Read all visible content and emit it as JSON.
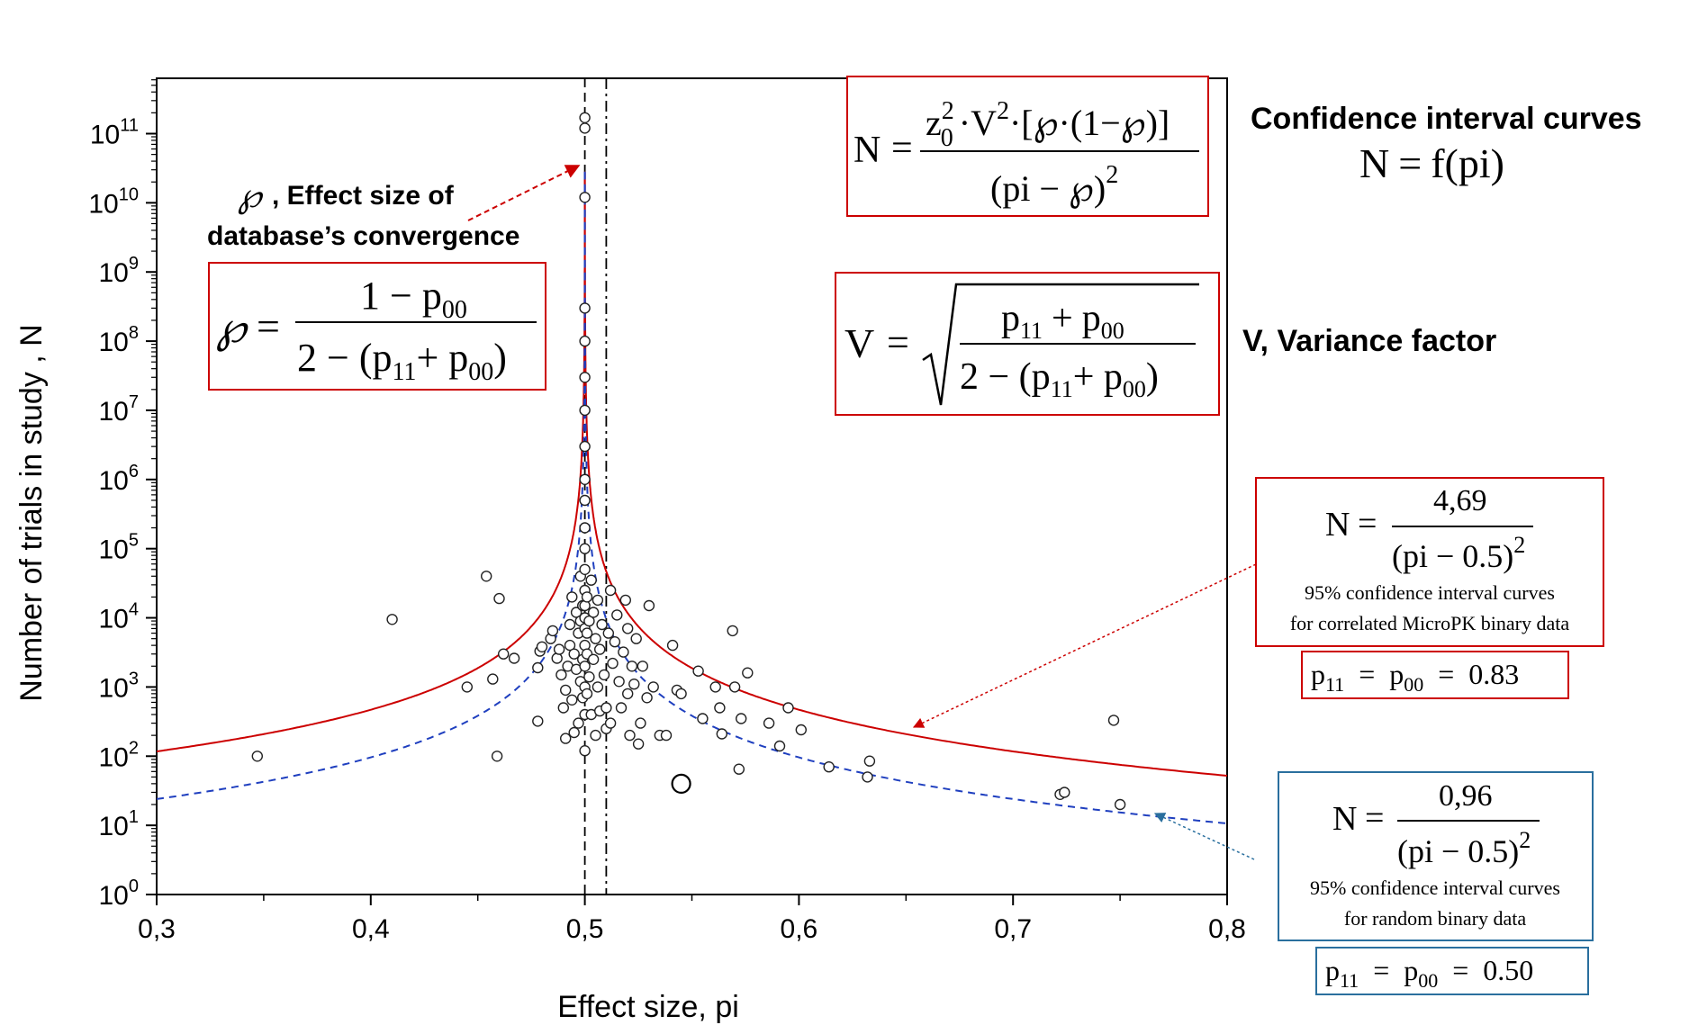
{
  "chart_data": {
    "type": "scatter",
    "title": "",
    "xlabel": "Effect size, pi",
    "ylabel": "Number of trials in study , N",
    "xlim": [
      0.3,
      0.8
    ],
    "ylim_log10": [
      0,
      11.8
    ],
    "y_scale": "log",
    "grid": false,
    "x_ticks": [
      "0,3",
      "0,4",
      "0,5",
      "0,6",
      "0,7",
      "0,8"
    ],
    "x_tick_values": [
      0.3,
      0.4,
      0.5,
      0.6,
      0.7,
      0.8
    ],
    "y_tick_exponents": [
      0,
      1,
      2,
      3,
      4,
      5,
      6,
      7,
      8,
      9,
      10,
      11
    ],
    "y_tick_base": "10",
    "reference_lines": [
      {
        "x": 0.5,
        "style": "dashed",
        "color": "#000000"
      },
      {
        "x": 0.51,
        "style": "dash-dot",
        "color": "#000000"
      }
    ],
    "curves": [
      {
        "constant": 4.69,
        "center": 0.5,
        "color": "#cc0000",
        "style": "solid"
      },
      {
        "constant": 0.96,
        "center": 0.5,
        "color": "#1f3fbf",
        "style": "dashed"
      }
    ],
    "points": [
      [
        0.347,
        100
      ],
      [
        0.41,
        9500
      ],
      [
        0.445,
        1000
      ],
      [
        0.454,
        40000
      ],
      [
        0.457,
        1300
      ],
      [
        0.459,
        100
      ],
      [
        0.46,
        19000
      ],
      [
        0.462,
        3000
      ],
      [
        0.467,
        2600
      ],
      [
        0.478,
        320
      ],
      [
        0.478,
        1900
      ],
      [
        0.479,
        3300
      ],
      [
        0.48,
        3800
      ],
      [
        0.484,
        5000
      ],
      [
        0.485,
        6500
      ],
      [
        0.487,
        2600
      ],
      [
        0.488,
        3500
      ],
      [
        0.489,
        1500
      ],
      [
        0.49,
        500
      ],
      [
        0.491,
        180
      ],
      [
        0.491,
        900
      ],
      [
        0.492,
        2000
      ],
      [
        0.493,
        4000
      ],
      [
        0.493,
        8000
      ],
      [
        0.494,
        20000
      ],
      [
        0.494,
        650
      ],
      [
        0.495,
        220
      ],
      [
        0.495,
        3000
      ],
      [
        0.496,
        12000
      ],
      [
        0.496,
        1800
      ],
      [
        0.497,
        300
      ],
      [
        0.497,
        6000
      ],
      [
        0.498,
        1200
      ],
      [
        0.498,
        40000
      ],
      [
        0.498,
        9000
      ],
      [
        0.499,
        2500
      ],
      [
        0.499,
        15000
      ],
      [
        0.499,
        700
      ],
      [
        0.5,
        120
      ],
      [
        0.5,
        400
      ],
      [
        0.5,
        1000
      ],
      [
        0.5,
        2000
      ],
      [
        0.5,
        4000
      ],
      [
        0.5,
        7000
      ],
      [
        0.5,
        10000
      ],
      [
        0.5,
        15000
      ],
      [
        0.5,
        25000
      ],
      [
        0.5,
        50000
      ],
      [
        0.5,
        100000
      ],
      [
        0.5,
        200000
      ],
      [
        0.5,
        500000
      ],
      [
        0.5,
        1000000
      ],
      [
        0.5,
        3000000
      ],
      [
        0.5,
        10000000
      ],
      [
        0.5,
        30000000
      ],
      [
        0.5,
        100000000
      ],
      [
        0.5,
        300000000
      ],
      [
        0.5,
        12000000000
      ],
      [
        0.5,
        120000000000
      ],
      [
        0.5,
        170000000000
      ],
      [
        0.501,
        800
      ],
      [
        0.501,
        3000
      ],
      [
        0.501,
        20000
      ],
      [
        0.501,
        6000
      ],
      [
        0.502,
        1400
      ],
      [
        0.502,
        9000
      ],
      [
        0.503,
        35000
      ],
      [
        0.503,
        400
      ],
      [
        0.504,
        2500
      ],
      [
        0.504,
        12000
      ],
      [
        0.505,
        200
      ],
      [
        0.505,
        5000
      ],
      [
        0.506,
        1000
      ],
      [
        0.506,
        18000
      ],
      [
        0.507,
        3500
      ],
      [
        0.507,
        450
      ],
      [
        0.508,
        8000
      ],
      [
        0.509,
        1500
      ],
      [
        0.51,
        250
      ],
      [
        0.51,
        500
      ],
      [
        0.511,
        6000
      ],
      [
        0.512,
        300
      ],
      [
        0.512,
        25000
      ],
      [
        0.513,
        2200
      ],
      [
        0.514,
        4500
      ],
      [
        0.515,
        11000
      ],
      [
        0.516,
        1200
      ],
      [
        0.517,
        500
      ],
      [
        0.518,
        3200
      ],
      [
        0.519,
        18000
      ],
      [
        0.52,
        800
      ],
      [
        0.52,
        7000
      ],
      [
        0.521,
        200
      ],
      [
        0.522,
        2000
      ],
      [
        0.523,
        1100
      ],
      [
        0.524,
        5000
      ],
      [
        0.525,
        150
      ],
      [
        0.526,
        300
      ],
      [
        0.527,
        2000
      ],
      [
        0.529,
        700
      ],
      [
        0.53,
        15000
      ],
      [
        0.532,
        1000
      ],
      [
        0.535,
        200
      ],
      [
        0.538,
        200
      ],
      [
        0.541,
        4000
      ],
      [
        0.543,
        900
      ],
      [
        0.545,
        800
      ],
      [
        0.553,
        1700
      ],
      [
        0.555,
        350
      ],
      [
        0.561,
        1000
      ],
      [
        0.563,
        500
      ],
      [
        0.564,
        210
      ],
      [
        0.569,
        6500
      ],
      [
        0.57,
        1000
      ],
      [
        0.572,
        65
      ],
      [
        0.573,
        350
      ],
      [
        0.576,
        1600
      ],
      [
        0.586,
        300
      ],
      [
        0.591,
        140
      ],
      [
        0.595,
        500
      ],
      [
        0.601,
        240
      ],
      [
        0.614,
        70
      ],
      [
        0.632,
        50
      ],
      [
        0.633,
        85
      ],
      [
        0.722,
        28
      ],
      [
        0.724,
        30
      ],
      [
        0.747,
        330
      ],
      [
        0.75,
        20
      ]
    ],
    "large_point": [
      0.545,
      40
    ]
  },
  "annotations": {
    "effect_size_label": ", Effect size of",
    "effect_size_label_line2": "database’s convergence",
    "effect_size_symbol": "℘",
    "right_title": "Confidence interval curves",
    "variance_label": "V, Variance factor",
    "formula_f": {
      "lhs": "N",
      "rhs_f": "f",
      "rhs_arg": "pi"
    },
    "formula_N": {
      "lhs": "N",
      "z": "z",
      "z_sub": "0",
      "z_sup": "2",
      "v": "V",
      "v_sup": "2",
      "frac_rest": "·[℘·(1−℘)]",
      "den": "(pi − ℘)",
      "den_sup": "2"
    },
    "formula_V": {
      "lhs": "V",
      "num_a": "p",
      "num_a_sub": "11",
      "num_plus": "+",
      "num_b": "p",
      "num_b_sub": "00",
      "den_prefix": "2 − (p",
      "den_sub1": "11",
      "den_mid": "+ p",
      "den_sub2": "00",
      "den_suffix": ")"
    },
    "formula_wp": {
      "lhs": "℘",
      "num_prefix": "1 − p",
      "num_sub": "00",
      "den_prefix": "2 − (p",
      "den_sub1": "11",
      "den_mid": "+ p",
      "den_sub2": "00",
      "den_suffix": ")"
    },
    "box_red": {
      "lhs": "N",
      "num": "4,69",
      "den": "(pi − 0.5)",
      "den_sup": "2",
      "caption1": "95% confidence interval curves",
      "caption2": "for correlated MicroPK binary data",
      "p_label_a": "p",
      "p_sub_a": "11",
      "p_label_b": "p",
      "p_sub_b": "00",
      "p_value": "0.83"
    },
    "box_blue": {
      "lhs": "N",
      "num": "0,96",
      "den": "(pi − 0.5)",
      "den_sup": "2",
      "caption1": "95% confidence interval curves",
      "caption2": "for random binary data",
      "p_label_a": "p",
      "p_sub_a": "11",
      "p_label_b": "p",
      "p_sub_b": "00",
      "p_value": "0.50"
    },
    "eq": "="
  },
  "colors": {
    "red": "#cc0000",
    "blue": "#1f3fbf",
    "teal_box": "#2a6f9e",
    "axis": "#000000"
  }
}
